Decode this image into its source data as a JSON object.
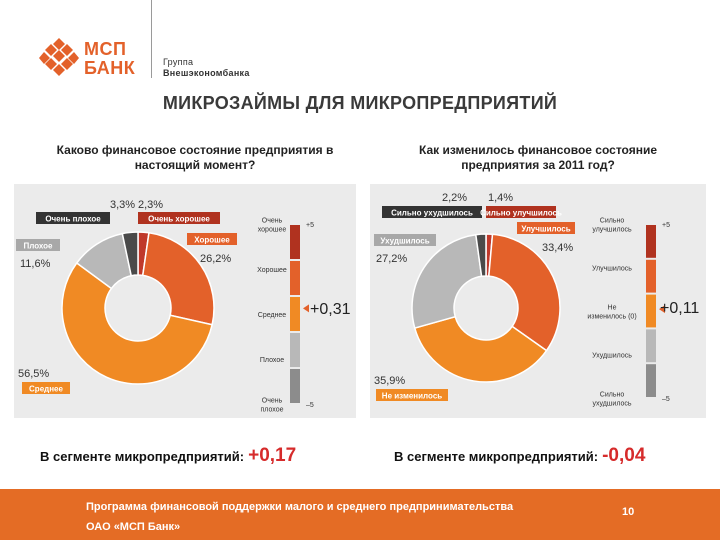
{
  "header": {
    "logo_text_line1": "МСП",
    "logo_text_line2": "БАНК",
    "group_line1": "Группа",
    "group_line2": "Внешэкономбанка"
  },
  "title": "МИКРОЗАЙМЫ ДЛЯ МИКРОПРЕДПРИЯТИЙ",
  "left": {
    "question_line1": "Каково финансовое состояние предприятия в",
    "question_line2": "настоящий момент?",
    "index_value": "+0,31",
    "segment_label": "В сегменте микропредприятий:",
    "segment_value": "+0,17"
  },
  "right": {
    "question_line1": "Как изменилось финансовое состояние",
    "question_line2": "предприятия за 2011 год?",
    "index_value": "+0,11",
    "segment_label": "В сегменте микропредприятий:",
    "segment_value": "-0,04"
  },
  "footer": {
    "line1": "Программа финансовой поддержки малого и среднего предпринимательства",
    "line2": "ОАО «МСП Банк»",
    "page": "10"
  },
  "colors": {
    "very_good": "#c0392b",
    "good": "#e3612a",
    "medium": "#f08a24",
    "bad": "#b8b8b8",
    "very_bad": "#4a4a4a",
    "footer": "#e46c25"
  },
  "chart_data": [
    {
      "type": "pie",
      "donut": true,
      "title": "Каково финансовое состояние предприятия в настоящий момент?",
      "slices": [
        {
          "label": "Очень хорошее",
          "value": 2.3,
          "value_text": "2,3%",
          "color": "#c0392b"
        },
        {
          "label": "Хорошее",
          "value": 26.2,
          "value_text": "26,2%",
          "color": "#e3612a"
        },
        {
          "label": "Среднее",
          "value": 56.5,
          "value_text": "56,5%",
          "color": "#f08a24"
        },
        {
          "label": "Плохое",
          "value": 11.6,
          "value_text": "11,6%",
          "color": "#b8b8b8"
        },
        {
          "label": "Очень плохое",
          "value": 3.3,
          "value_text": "3,3%",
          "color": "#4a4a4a"
        }
      ],
      "scale": {
        "ticks": [
          "Очень хорошее",
          "Хорошее",
          "Среднее",
          "Плохое",
          "Очень плохое"
        ],
        "max_label": "+5",
        "min_label": "–5",
        "index": 0.31,
        "index_text": "+0,31"
      }
    },
    {
      "type": "pie",
      "donut": true,
      "title": "Как изменилось финансовое состояние предприятия за 2011 год?",
      "slices": [
        {
          "label": "Сильно улучшилось",
          "value": 1.4,
          "value_text": "1,4%",
          "color": "#c0392b"
        },
        {
          "label": "Улучшилось",
          "value": 33.4,
          "value_text": "33,4%",
          "color": "#e3612a"
        },
        {
          "label": "Не изменилось",
          "value": 35.9,
          "value_text": "35,9%",
          "color": "#f08a24"
        },
        {
          "label": "Ухудшилось",
          "value": 27.2,
          "value_text": "27,2%",
          "color": "#b8b8b8"
        },
        {
          "label": "Сильно ухудшилось",
          "value": 2.2,
          "value_text": "2,2%",
          "color": "#4a4a4a"
        }
      ],
      "scale": {
        "ticks": [
          "Сильно улучшилось",
          "Улучшилось",
          "Не изменилось (0)",
          "Ухудшилось",
          "Сильно ухудшилось"
        ],
        "max_label": "+5",
        "min_label": "–5",
        "index": 0.11,
        "index_text": "+0,11"
      }
    }
  ]
}
